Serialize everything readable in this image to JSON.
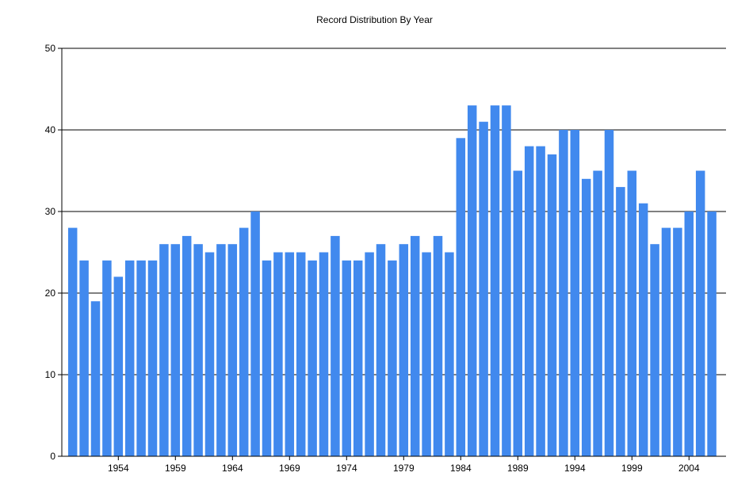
{
  "chart_data": {
    "type": "bar",
    "title": "Record Distribution By Year",
    "xlabel": "",
    "ylabel": "",
    "ylim": [
      0,
      50
    ],
    "yticks": [
      0,
      10,
      20,
      30,
      40,
      50
    ],
    "grid": true,
    "legend": "none",
    "bar_color": "#4189EE",
    "categories": [
      "1950",
      "1951",
      "1952",
      "1953",
      "1954",
      "1955",
      "1956",
      "1957",
      "1958",
      "1959",
      "1960",
      "1961",
      "1962",
      "1963",
      "1964",
      "1965",
      "1966",
      "1967",
      "1968",
      "1969",
      "1970",
      "1971",
      "1972",
      "1973",
      "1974",
      "1975",
      "1976",
      "1977",
      "1978",
      "1979",
      "1980",
      "1981",
      "1982",
      "1983",
      "1984",
      "1985",
      "1986",
      "1987",
      "1988",
      "1989",
      "1990",
      "1991",
      "1992",
      "1993",
      "1994",
      "1995",
      "1996",
      "1997",
      "1998",
      "1999",
      "2000",
      "2001",
      "2002",
      "2003",
      "2004",
      "2005",
      "2006"
    ],
    "xtick_labels": [
      "1954",
      "1959",
      "1964",
      "1969",
      "1974",
      "1979",
      "1984",
      "1989",
      "1994",
      "1999",
      "2004"
    ],
    "values": [
      28,
      24,
      19,
      24,
      22,
      24,
      24,
      24,
      26,
      26,
      27,
      26,
      25,
      26,
      26,
      28,
      30,
      24,
      25,
      25,
      25,
      24,
      25,
      27,
      24,
      24,
      25,
      26,
      24,
      26,
      27,
      25,
      27,
      25,
      39,
      43,
      41,
      43,
      43,
      35,
      38,
      38,
      37,
      40,
      40,
      34,
      35,
      40,
      33,
      35,
      31,
      26,
      28,
      28,
      30,
      35,
      30
    ]
  }
}
